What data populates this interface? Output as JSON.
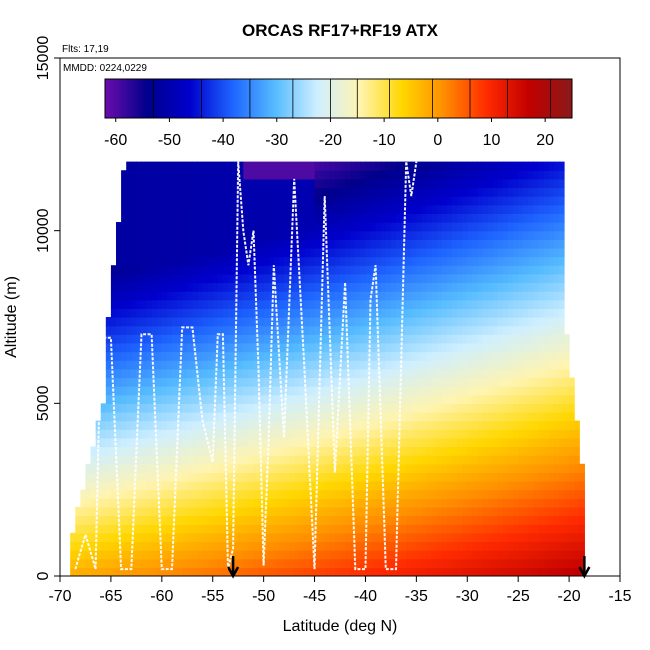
{
  "chart_data": {
    "type": "heatmap",
    "title": "ORCAS RF17+RF19 ATX",
    "annotations": [
      "Flts: 17,19",
      "MMDD: 0224,0229"
    ],
    "xlabel": "Latitude (deg N)",
    "ylabel": "Altitude (m)",
    "xlim": [
      -70,
      -15
    ],
    "ylim": [
      0,
      15000
    ],
    "x_ticks": [
      -70,
      -65,
      -60,
      -55,
      -50,
      -45,
      -40,
      -35,
      -30,
      -25,
      -20,
      -15
    ],
    "y_ticks": [
      0,
      5000,
      10000,
      15000
    ],
    "colorbar": {
      "range": [
        -62,
        25
      ],
      "ticks": [
        -60,
        -50,
        -40,
        -30,
        -20,
        -10,
        0,
        10,
        20
      ],
      "palette": [
        "#6a0dad",
        "#00008b",
        "#0000cd",
        "#1e64ff",
        "#55bbff",
        "#cfefff",
        "#fff4b0",
        "#ffd700",
        "#ff8c00",
        "#ff2a00",
        "#c00000",
        "#8b1a1a"
      ]
    },
    "colorbar_positions": {
      "x": [
        -62,
        -53,
        -44,
        -35,
        -27,
        -20,
        -15,
        -9,
        -1,
        6,
        13,
        21,
        25
      ],
      "y": []
    },
    "field_description_values": {
      "lat_min": -69,
      "lat_max": -18.5,
      "alt_top": 12000,
      "surface_temp_south": -2,
      "surface_temp_north": 18,
      "top_temp": -55
    },
    "flight_track": {
      "lat": [
        -68.5,
        -67.5,
        -66.5,
        -66,
        -65,
        -64,
        -63,
        -62,
        -61,
        -60,
        -59,
        -58,
        -57,
        -56,
        -55,
        -54.5,
        -54,
        -53.5,
        -53,
        -52.5,
        -52,
        -51.5,
        -51,
        -50.5,
        -50,
        -49.5,
        -49,
        -48,
        -47,
        -46,
        -45,
        -44,
        -43,
        -42,
        -41,
        -40,
        -39.5,
        -39,
        -38,
        -37,
        -36,
        -35.5,
        -35
      ],
      "alt": [
        200,
        1200,
        200,
        6900,
        6900,
        200,
        200,
        7000,
        7000,
        200,
        200,
        7200,
        7200,
        4500,
        3300,
        7000,
        7000,
        200,
        800,
        12000,
        10000,
        9000,
        10000,
        6000,
        300,
        4000,
        9000,
        4000,
        11500,
        6000,
        200,
        11000,
        3000,
        8500,
        200,
        200,
        8000,
        9000,
        200,
        200,
        12000,
        11000,
        12000
      ]
    },
    "markers": [
      {
        "lat": -53,
        "label": "arrow"
      },
      {
        "lat": -18.5,
        "label": "arrow"
      }
    ]
  }
}
